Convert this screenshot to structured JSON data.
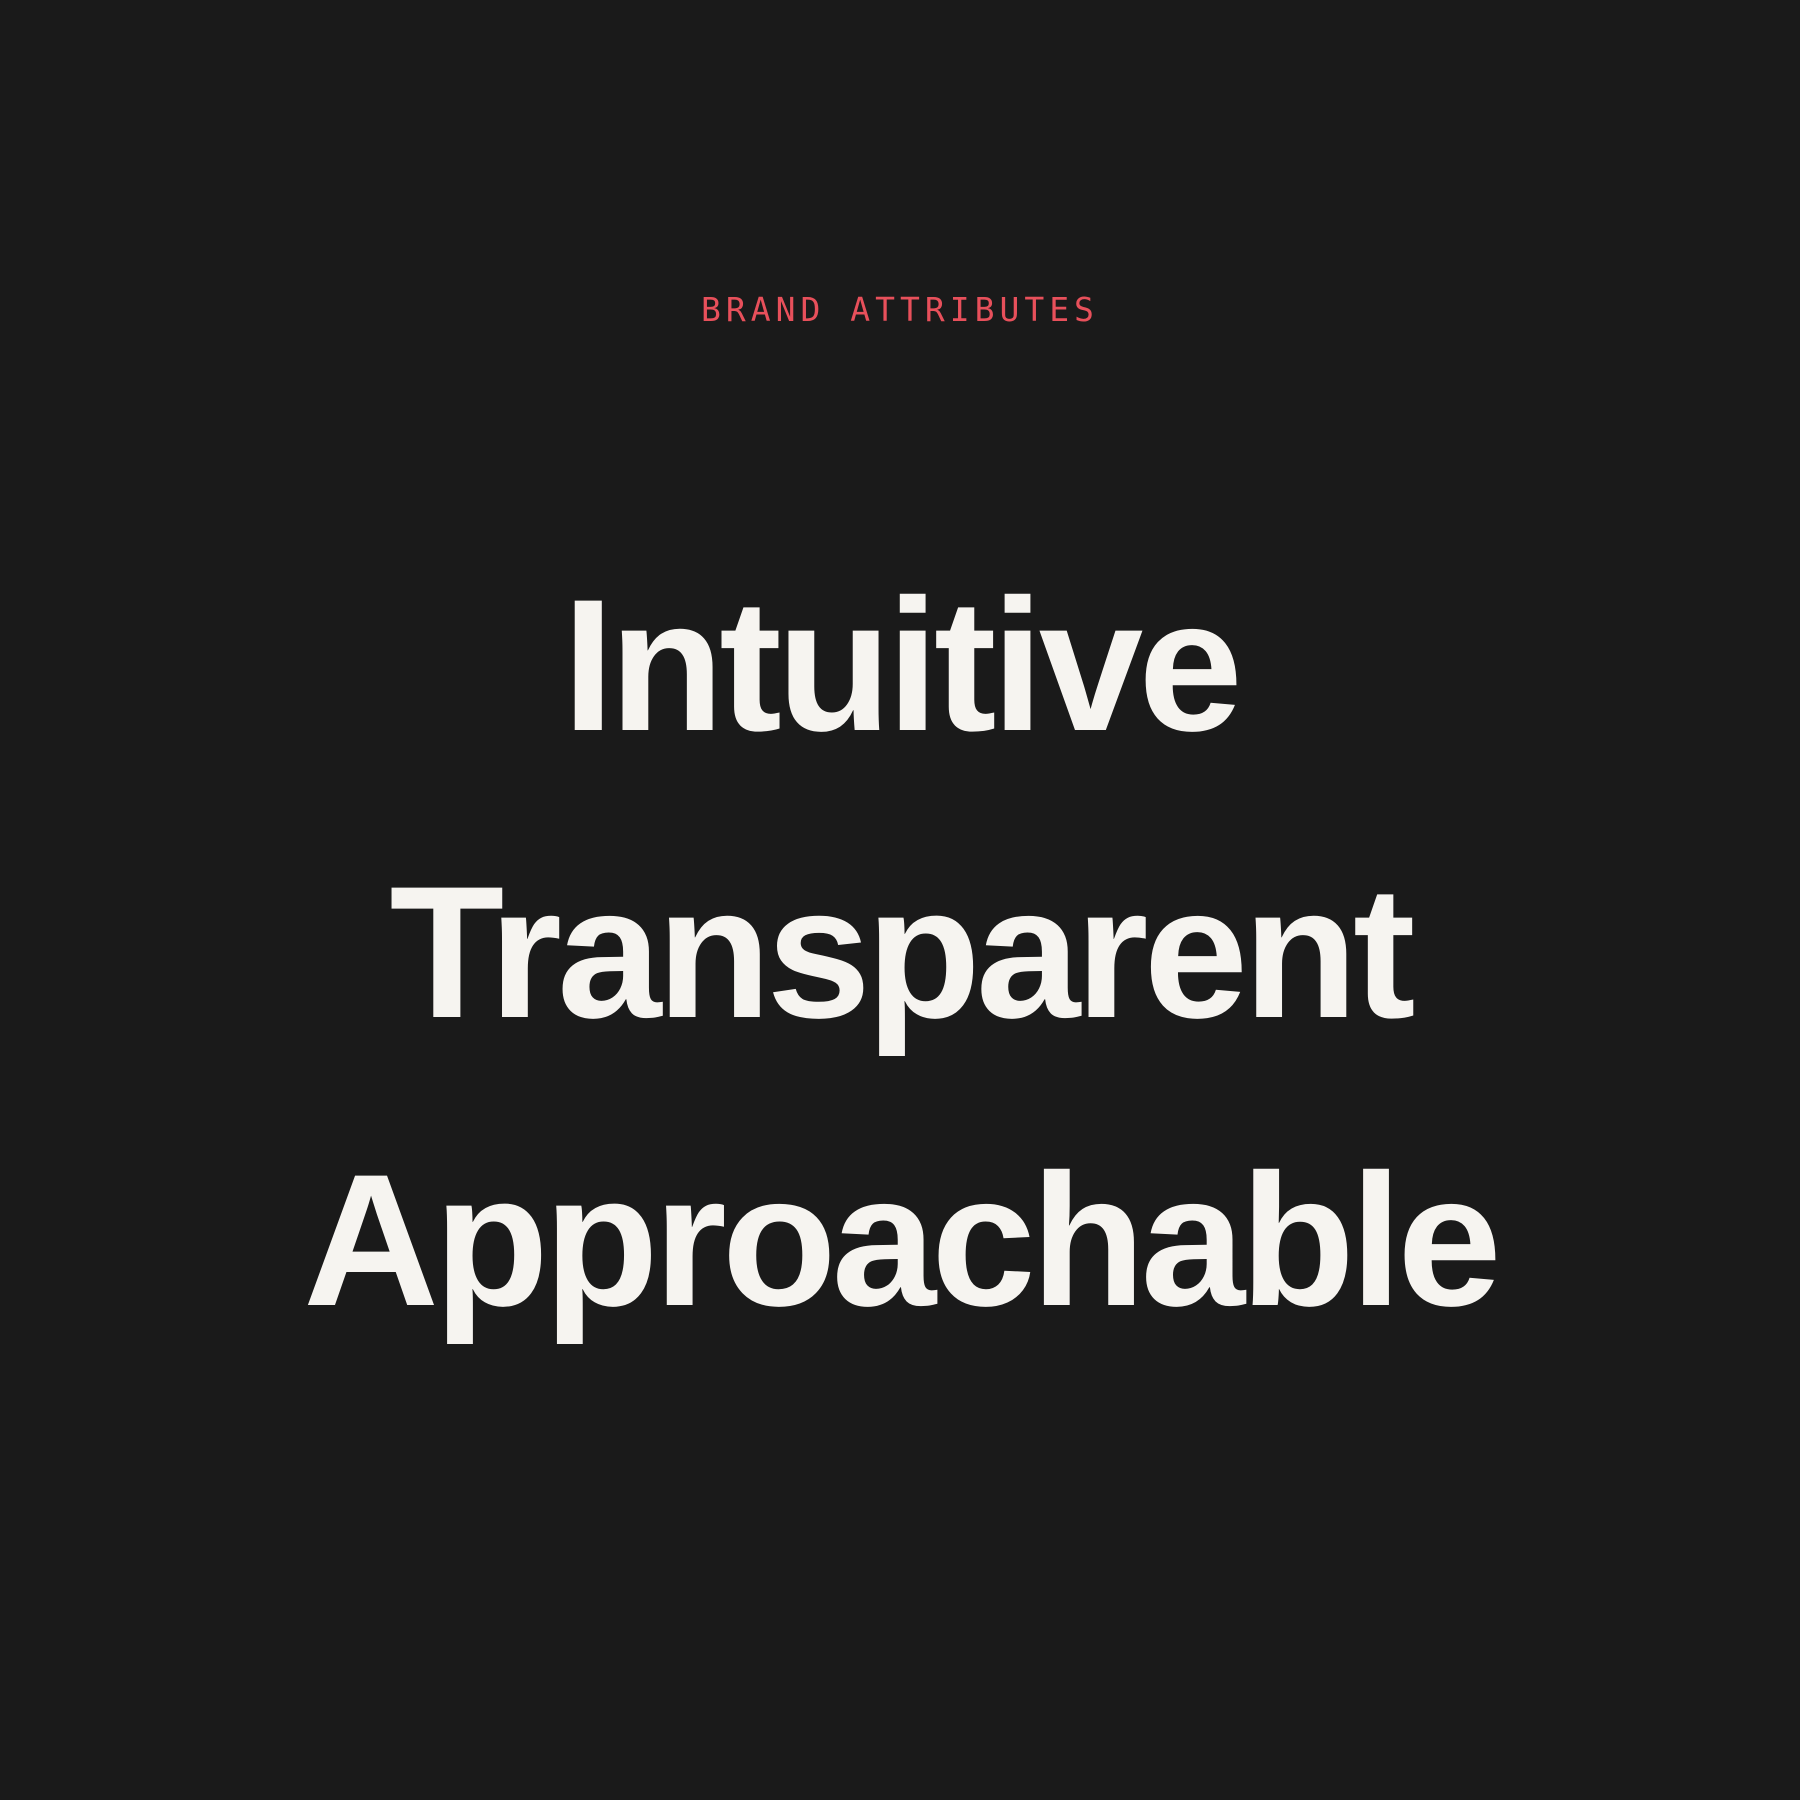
{
  "eyebrow": "BRAND ATTRIBUTES",
  "attributes": [
    "Intuitive",
    "Transparent",
    "Approachable"
  ],
  "colors": {
    "background": "#1a1a1a",
    "accent": "#e8505b",
    "text": "#f6f4f0"
  }
}
